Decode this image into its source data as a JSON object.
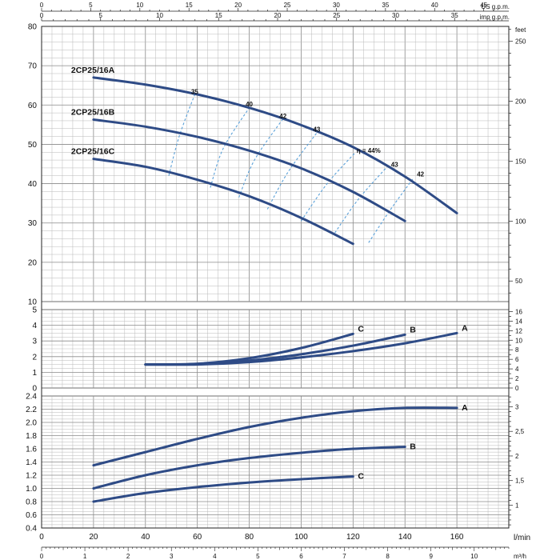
{
  "chart_data": {
    "type": "line",
    "x_axis_bottom": {
      "unit_lmin": "l/min",
      "unit_m3h": "m³/h",
      "ticks_lmin": [
        0,
        20,
        40,
        60,
        80,
        100,
        120,
        140,
        160
      ],
      "ticks_m3h": [
        0,
        1,
        2,
        3,
        4,
        5,
        6,
        7,
        8,
        9,
        10
      ],
      "lim_lmin": [
        0,
        180
      ]
    },
    "x_axis_top": {
      "unit_us": "US g.p.m.",
      "unit_imp": "imp g.p.m.",
      "ticks_us": [
        0,
        5,
        10,
        15,
        20,
        25,
        30,
        35,
        40,
        45
      ],
      "ticks_imp": [
        0,
        5,
        10,
        15,
        20,
        25,
        30,
        35
      ]
    },
    "panels": [
      {
        "id": "head",
        "ylim": [
          10,
          80
        ],
        "ticks_left": [
          10,
          20,
          30,
          40,
          50,
          60,
          70,
          80
        ],
        "right_unit": "feet",
        "ticks_right": [
          50,
          100,
          150,
          200,
          250
        ],
        "series": [
          {
            "name": "2CP25/16A",
            "x": [
              20,
              40,
              60,
              80,
              100,
              120,
              140,
              160
            ],
            "y": [
              67,
              65.2,
              62.7,
              59.3,
              54.9,
              49.3,
              41.8,
              32.5
            ]
          },
          {
            "name": "2CP25/16B",
            "x": [
              20,
              40,
              60,
              80,
              100,
              120,
              140
            ],
            "y": [
              56.3,
              54.5,
              51.9,
              48.4,
              43.9,
              37.9,
              30.5
            ]
          },
          {
            "name": "2CP25/16C",
            "x": [
              20,
              40,
              60,
              80,
              100,
              120
            ],
            "y": [
              46.3,
              44.3,
              41.0,
              36.8,
              31.3,
              24.7
            ]
          }
        ],
        "efficiency_labels": [
          {
            "text": "35",
            "x": 59,
            "y": 62.8
          },
          {
            "text": "40",
            "x": 80,
            "y": 59.7
          },
          {
            "text": "42",
            "x": 93,
            "y": 56.6
          },
          {
            "text": "43",
            "x": 106,
            "y": 53.2
          },
          {
            "text": "η = 44%",
            "x": 126,
            "y": 47.8
          },
          {
            "text": "43",
            "x": 136,
            "y": 44.3
          },
          {
            "text": "42",
            "x": 146,
            "y": 41.8
          }
        ],
        "efficiency_lines": [
          {
            "x": [
              49,
              53,
              59
            ],
            "y": [
              42,
              52,
              62.7
            ]
          },
          {
            "x": [
              65,
              70,
              80
            ],
            "y": [
              39,
              49,
              59.3
            ]
          },
          {
            "x": [
              76,
              82,
              93
            ],
            "y": [
              36.5,
              46,
              56.5
            ]
          },
          {
            "x": [
              87,
              95,
              106
            ],
            "y": [
              33.5,
              43,
              52.9
            ]
          },
          {
            "x": [
              100,
              110,
              121
            ],
            "y": [
              30.5,
              40,
              48
            ]
          },
          {
            "x": [
              113,
              122,
              133
            ],
            "y": [
              27.5,
              36,
              44.2
            ]
          },
          {
            "x": [
              126,
              134,
              143
            ],
            "y": [
              25,
              33,
              41.2
            ]
          }
        ]
      },
      {
        "id": "npsh",
        "ylim": [
          0,
          5
        ],
        "ticks_left": [
          0,
          1,
          2,
          3,
          4,
          5
        ],
        "ticks_right": [
          0,
          2,
          4,
          6,
          8,
          10,
          12,
          14,
          16
        ],
        "series": [
          {
            "name": "A",
            "x": [
              40,
              60,
              80,
              100,
              120,
              140,
              160
            ],
            "y": [
              1.5,
              1.5,
              1.65,
              1.95,
              2.35,
              2.85,
              3.5
            ]
          },
          {
            "name": "B",
            "x": [
              40,
              60,
              80,
              100,
              120,
              140
            ],
            "y": [
              1.5,
              1.52,
              1.75,
              2.15,
              2.7,
              3.4
            ]
          },
          {
            "name": "C",
            "x": [
              40,
              60,
              80,
              100,
              120
            ],
            "y": [
              1.5,
              1.55,
              1.9,
              2.55,
              3.45
            ]
          }
        ]
      },
      {
        "id": "power",
        "ylim": [
          0.4,
          2.4
        ],
        "ticks_left": [
          0.4,
          0.6,
          0.8,
          1.0,
          1.2,
          1.4,
          1.6,
          1.8,
          2.0,
          2.2,
          2.4
        ],
        "ticks_right": [
          "1",
          "1,5",
          "2",
          "2,5",
          "3"
        ],
        "ticks_right_values": [
          1,
          1.5,
          2,
          2.5,
          3
        ],
        "series": [
          {
            "name": "A",
            "x": [
              20,
              40,
              60,
              80,
              100,
              120,
              140,
              160
            ],
            "y": [
              1.35,
              1.55,
              1.75,
              1.93,
              2.07,
              2.17,
              2.22,
              2.22
            ]
          },
          {
            "name": "B",
            "x": [
              20,
              40,
              60,
              80,
              100,
              120,
              140
            ],
            "y": [
              1.0,
              1.2,
              1.35,
              1.46,
              1.54,
              1.6,
              1.63
            ]
          },
          {
            "name": "C",
            "x": [
              20,
              40,
              60,
              80,
              100,
              120
            ],
            "y": [
              0.8,
              0.93,
              1.02,
              1.09,
              1.14,
              1.18
            ]
          }
        ]
      }
    ]
  },
  "colors": {
    "curve": "#2e4b86",
    "efficiency": "#5aa0d8",
    "grid_minor": "#b9b9b9",
    "grid_major": "#555555"
  }
}
